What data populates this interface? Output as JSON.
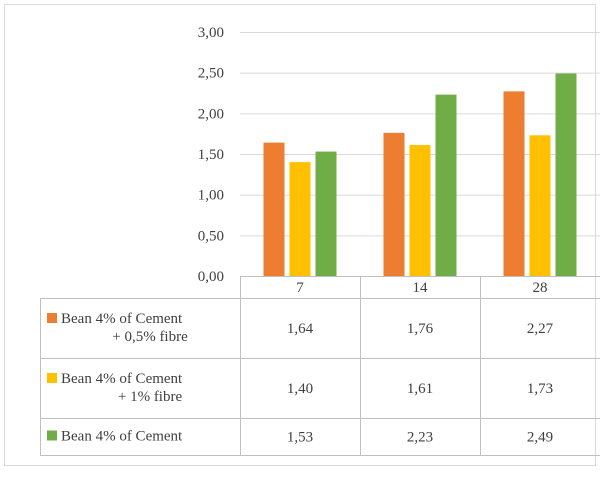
{
  "chart_data": {
    "type": "bar",
    "title": "",
    "xlabel": "",
    "ylabel": "",
    "ylim": [
      0,
      3
    ],
    "yticks": [
      "0,00",
      "0,50",
      "1,00",
      "1,50",
      "2,00",
      "2,50",
      "3,00"
    ],
    "ytick_values": [
      0,
      0.5,
      1,
      1.5,
      2,
      2.5,
      3
    ],
    "grid": true,
    "legend": "data-table-below",
    "categories": [
      "7",
      "14",
      "28"
    ],
    "series": [
      {
        "name": "Bean 4% of Cement + 0,5% fibre",
        "name_lines": [
          "Bean 4% of Cement",
          "+ 0,5% fibre"
        ],
        "color": "#ED7D31",
        "values": [
          1.64,
          1.76,
          2.27
        ],
        "labels": [
          "1,64",
          "1,76",
          "2,27"
        ]
      },
      {
        "name": "Bean 4% of Cement + 1% fibre",
        "name_lines": [
          "Bean 4% of Cement",
          "+ 1% fibre"
        ],
        "color": "#FFC000",
        "values": [
          1.4,
          1.61,
          1.73
        ],
        "labels": [
          "1,40",
          "1,61",
          "1,73"
        ]
      },
      {
        "name": "Bean 4% of Cement",
        "name_lines": [
          "Bean 4% of Cement"
        ],
        "color": "#70AD47",
        "values": [
          1.53,
          2.23,
          2.49
        ],
        "labels": [
          "1,53",
          "2,23",
          "2,49"
        ]
      }
    ]
  },
  "colors": {
    "grid": "#d9d9d9",
    "border": "#bfbfbf",
    "text": "#404040"
  }
}
